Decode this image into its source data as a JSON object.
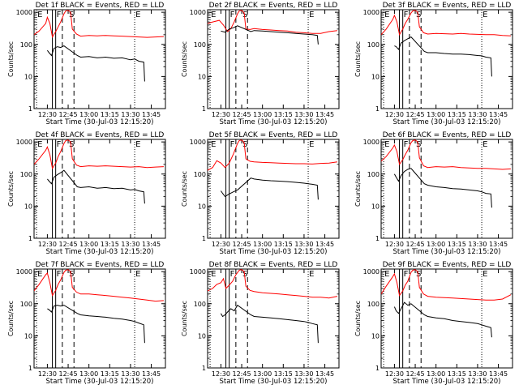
{
  "chart_data": {
    "type": "line",
    "shared": {
      "xlabel": "Start Time (30-Jul-03 12:15:20)",
      "ylabel": "Counts/sec",
      "xlim": [
        12.34,
        13.92
      ],
      "ylim": [
        1,
        1200
      ],
      "yscale": "log",
      "xticks": [
        12.5,
        12.75,
        13.0,
        13.25,
        13.5,
        13.75
      ],
      "xtick_labels": [
        "12:30",
        "12:45",
        "13:00",
        "13:15",
        "13:30",
        "13:45"
      ],
      "yticks": [
        1,
        10,
        100,
        1000
      ],
      "ytick_labels": [
        "1",
        "10",
        "100",
        "1000"
      ],
      "series_names": [
        "Events",
        "LLD"
      ],
      "series_colors": {
        "Events": "#000000",
        "LLD": "#ff0000"
      },
      "interval_labels": [
        "E",
        "F",
        "S",
        "E"
      ],
      "interval_lines": [
        {
          "x": 12.37,
          "style": "dotted"
        },
        {
          "x": 12.56,
          "style": "solid"
        },
        {
          "x": 12.6,
          "style": "solid"
        },
        {
          "x": 12.68,
          "style": "dashed"
        },
        {
          "x": 12.82,
          "style": "dashed"
        },
        {
          "x": 13.55,
          "style": "dotted"
        }
      ]
    },
    "panels": [
      {
        "title": "Det 1f BLACK = Events, RED = LLD",
        "series": [
          {
            "name": "LLD",
            "x": [
              12.34,
              12.4,
              12.48,
              12.5,
              12.53,
              12.56,
              12.6,
              12.63,
              12.66,
              12.7,
              12.72,
              12.75,
              12.78,
              12.8,
              12.85,
              12.9,
              13.0,
              13.1,
              13.2,
              13.3,
              13.4,
              13.5,
              13.6,
              13.7,
              13.8,
              13.9
            ],
            "y": [
              200,
              260,
              450,
              700,
              450,
              170,
              250,
              350,
              500,
              900,
              1100,
              1150,
              1000,
              300,
              210,
              180,
              190,
              185,
              190,
              185,
              180,
              175,
              170,
              165,
              170,
              175
            ]
          },
          {
            "name": "Events",
            "x": [
              12.5,
              12.52,
              12.55,
              12.58,
              12.62,
              12.66,
              12.7,
              12.86,
              12.9,
              13.0,
              13.1,
              13.2,
              13.3,
              13.4,
              13.5,
              13.55,
              13.6,
              13.66,
              13.67
            ],
            "y": [
              65,
              55,
              45,
              75,
              85,
              80,
              90,
              45,
              40,
              42,
              38,
              40,
              37,
              38,
              33,
              35,
              30,
              28,
              7
            ]
          }
        ]
      },
      {
        "title": "Det 2f BLACK = Events, RED = LLD",
        "series": [
          {
            "name": "LLD",
            "x": [
              12.34,
              12.4,
              12.48,
              12.53,
              12.58,
              12.62,
              12.66,
              12.7,
              12.72,
              12.75,
              12.78,
              12.8,
              12.85,
              12.9,
              13.0,
              13.1,
              13.2,
              13.3,
              13.4,
              13.5,
              13.6,
              13.7,
              13.8,
              13.9
            ],
            "y": [
              450,
              500,
              560,
              400,
              250,
              310,
              500,
              900,
              1100,
              1150,
              950,
              300,
              290,
              310,
              290,
              280,
              270,
              260,
              240,
              230,
              220,
              220,
              250,
              270
            ]
          },
          {
            "name": "Events",
            "x": [
              12.5,
              12.55,
              12.6,
              12.65,
              12.7,
              12.86,
              12.9,
              13.0,
              13.1,
              13.2,
              13.3,
              13.4,
              13.5,
              13.6,
              13.66,
              13.67
            ],
            "y": [
              260,
              240,
              300,
              330,
              380,
              250,
              270,
              260,
              250,
              240,
              230,
              220,
              210,
              200,
              190,
              100
            ]
          }
        ]
      },
      {
        "title": "Det 3f BLACK = Events, RED = LLD",
        "series": [
          {
            "name": "LLD",
            "x": [
              12.34,
              12.4,
              12.48,
              12.5,
              12.53,
              12.56,
              12.6,
              12.63,
              12.66,
              12.7,
              12.72,
              12.75,
              12.78,
              12.8,
              12.85,
              12.9,
              13.0,
              13.1,
              13.2,
              13.3,
              13.4,
              13.5,
              13.6,
              13.7,
              13.8,
              13.9
            ],
            "y": [
              200,
              300,
              600,
              800,
              500,
              200,
              300,
              450,
              600,
              950,
              1100,
              1150,
              1000,
              350,
              230,
              210,
              220,
              215,
              210,
              220,
              210,
              205,
              200,
              200,
              190,
              185
            ]
          },
          {
            "name": "Events",
            "x": [
              12.5,
              12.52,
              12.55,
              12.58,
              12.62,
              12.66,
              12.7,
              12.86,
              12.9,
              13.0,
              13.1,
              13.2,
              13.3,
              13.4,
              13.5,
              13.55,
              13.6,
              13.66,
              13.67
            ],
            "y": [
              90,
              85,
              70,
              110,
              130,
              150,
              170,
              60,
              55,
              55,
              52,
              50,
              50,
              48,
              45,
              44,
              40,
              38,
              10
            ]
          }
        ]
      },
      {
        "title": "Det 4f BLACK = Events, RED = LLD",
        "series": [
          {
            "name": "LLD",
            "x": [
              12.34,
              12.4,
              12.48,
              12.5,
              12.53,
              12.56,
              12.6,
              12.63,
              12.66,
              12.7,
              12.72,
              12.75,
              12.78,
              12.8,
              12.85,
              12.9,
              13.0,
              13.1,
              13.2,
              13.3,
              13.4,
              13.5,
              13.6,
              13.7,
              13.8,
              13.9
            ],
            "y": [
              200,
              300,
              550,
              700,
              400,
              150,
              220,
              350,
              500,
              900,
              1100,
              1150,
              1000,
              300,
              190,
              170,
              180,
              175,
              180,
              175,
              170,
              165,
              170,
              160,
              165,
              170
            ]
          },
          {
            "name": "Events",
            "x": [
              12.5,
              12.52,
              12.55,
              12.58,
              12.62,
              12.66,
              12.7,
              12.86,
              12.9,
              13.0,
              13.1,
              13.2,
              13.3,
              13.4,
              13.5,
              13.55,
              13.6,
              13.66,
              13.67
            ],
            "y": [
              70,
              60,
              50,
              80,
              95,
              110,
              130,
              40,
              38,
              40,
              36,
              38,
              35,
              36,
              32,
              33,
              30,
              28,
              12
            ]
          }
        ]
      },
      {
        "title": "Det 5f BLACK = Events, RED = LLD",
        "series": [
          {
            "name": "LLD",
            "x": [
              12.34,
              12.4,
              12.45,
              12.5,
              12.55,
              12.6,
              12.65,
              12.7,
              12.72,
              12.75,
              12.78,
              12.8,
              12.85,
              12.9,
              13.0,
              13.1,
              13.2,
              13.3,
              13.4,
              13.5,
              13.6,
              13.7,
              13.8,
              13.9
            ],
            "y": [
              130,
              160,
              260,
              220,
              160,
              220,
              420,
              900,
              1100,
              1150,
              950,
              300,
              250,
              240,
              230,
              225,
              220,
              215,
              210,
              210,
              205,
              215,
              220,
              240
            ]
          },
          {
            "name": "Events",
            "x": [
              12.5,
              12.52,
              12.55,
              12.6,
              12.65,
              12.7,
              12.86,
              12.9,
              13.0,
              13.1,
              13.2,
              13.3,
              13.4,
              13.5,
              13.6,
              13.66,
              13.67
            ],
            "y": [
              30,
              25,
              20,
              24,
              28,
              32,
              75,
              70,
              65,
              62,
              60,
              58,
              55,
              52,
              48,
              45,
              16
            ]
          }
        ]
      },
      {
        "title": "Det 6f BLACK = Events, RED = LLD",
        "series": [
          {
            "name": "LLD",
            "x": [
              12.34,
              12.4,
              12.48,
              12.5,
              12.53,
              12.56,
              12.6,
              12.63,
              12.66,
              12.7,
              12.72,
              12.75,
              12.78,
              12.8,
              12.85,
              12.9,
              13.0,
              13.1,
              13.2,
              13.3,
              13.4,
              13.5,
              13.6,
              13.7,
              13.8,
              13.9
            ],
            "y": [
              250,
              350,
              650,
              800,
              500,
              200,
              280,
              400,
              550,
              950,
              1100,
              1150,
              1000,
              320,
              180,
              160,
              170,
              165,
              170,
              160,
              155,
              150,
              150,
              145,
              140,
              145
            ]
          },
          {
            "name": "Events",
            "x": [
              12.5,
              12.52,
              12.55,
              12.58,
              12.62,
              12.66,
              12.7,
              12.86,
              12.9,
              13.0,
              13.1,
              13.2,
              13.3,
              13.4,
              13.5,
              13.55,
              13.6,
              13.66,
              13.67
            ],
            "y": [
              100,
              80,
              60,
              90,
              120,
              140,
              150,
              50,
              45,
              40,
              38,
              35,
              34,
              32,
              30,
              28,
              25,
              24,
              9
            ]
          }
        ]
      },
      {
        "title": "Det 7f BLACK = Events, RED = LLD",
        "series": [
          {
            "name": "LLD",
            "x": [
              12.34,
              12.4,
              12.48,
              12.5,
              12.53,
              12.56,
              12.6,
              12.63,
              12.66,
              12.7,
              12.72,
              12.75,
              12.78,
              12.8,
              12.85,
              12.9,
              13.0,
              13.1,
              13.2,
              13.3,
              13.4,
              13.5,
              13.6,
              13.7,
              13.8,
              13.9
            ],
            "y": [
              250,
              400,
              800,
              900,
              450,
              180,
              260,
              400,
              550,
              950,
              1100,
              1150,
              1000,
              320,
              230,
              200,
              200,
              190,
              180,
              170,
              160,
              150,
              140,
              130,
              120,
              125
            ]
          },
          {
            "name": "Events",
            "x": [
              12.5,
              12.52,
              12.55,
              12.58,
              12.62,
              12.66,
              12.7,
              12.86,
              12.9,
              13.0,
              13.1,
              13.2,
              13.3,
              13.4,
              13.5,
              13.55,
              13.6,
              13.66,
              13.67
            ],
            "y": [
              70,
              65,
              55,
              85,
              90,
              85,
              90,
              50,
              45,
              42,
              40,
              38,
              35,
              33,
              30,
              28,
              25,
              22,
              6
            ]
          }
        ]
      },
      {
        "title": "Det 8f BLACK = Events, RED = LLD",
        "series": [
          {
            "name": "LLD",
            "x": [
              12.34,
              12.4,
              12.45,
              12.5,
              12.53,
              12.56,
              12.6,
              12.64,
              12.68,
              12.72,
              12.75,
              12.78,
              12.8,
              12.85,
              12.9,
              13.0,
              13.1,
              13.2,
              13.3,
              13.4,
              13.5,
              13.6,
              13.7,
              13.8,
              13.9
            ],
            "y": [
              250,
              300,
              400,
              450,
              600,
              300,
              380,
              500,
              800,
              1100,
              1150,
              1000,
              350,
              260,
              240,
              220,
              210,
              200,
              190,
              180,
              170,
              160,
              160,
              150,
              170
            ]
          },
          {
            "name": "Events",
            "x": [
              12.5,
              12.52,
              12.55,
              12.58,
              12.62,
              12.66,
              12.7,
              12.86,
              12.9,
              13.0,
              13.1,
              13.2,
              13.3,
              13.4,
              13.5,
              13.55,
              13.6,
              13.66,
              13.67
            ],
            "y": [
              50,
              40,
              45,
              55,
              70,
              60,
              90,
              45,
              40,
              38,
              36,
              34,
              32,
              30,
              28,
              26,
              24,
              22,
              6
            ]
          }
        ]
      },
      {
        "title": "Det 9f BLACK = Events, RED = LLD",
        "series": [
          {
            "name": "LLD",
            "x": [
              12.34,
              12.4,
              12.48,
              12.5,
              12.53,
              12.56,
              12.6,
              12.63,
              12.66,
              12.7,
              12.72,
              12.75,
              12.78,
              12.8,
              12.85,
              12.9,
              13.0,
              13.1,
              13.2,
              13.3,
              13.4,
              13.5,
              13.6,
              13.7,
              13.8,
              13.9
            ],
            "y": [
              200,
              350,
              700,
              850,
              450,
              180,
              250,
              380,
              500,
              950,
              1100,
              1150,
              1000,
              320,
              200,
              170,
              160,
              155,
              150,
              145,
              140,
              135,
              130,
              130,
              140,
              190
            ]
          },
          {
            "name": "Events",
            "x": [
              12.5,
              12.52,
              12.55,
              12.58,
              12.62,
              12.66,
              12.7,
              12.86,
              12.9,
              13.0,
              13.1,
              13.2,
              13.3,
              13.4,
              13.5,
              13.55,
              13.6,
              13.66,
              13.67
            ],
            "y": [
              80,
              60,
              50,
              70,
              110,
              90,
              100,
              45,
              40,
              36,
              34,
              30,
              28,
              26,
              24,
              22,
              20,
              18,
              9
            ]
          }
        ]
      }
    ]
  }
}
